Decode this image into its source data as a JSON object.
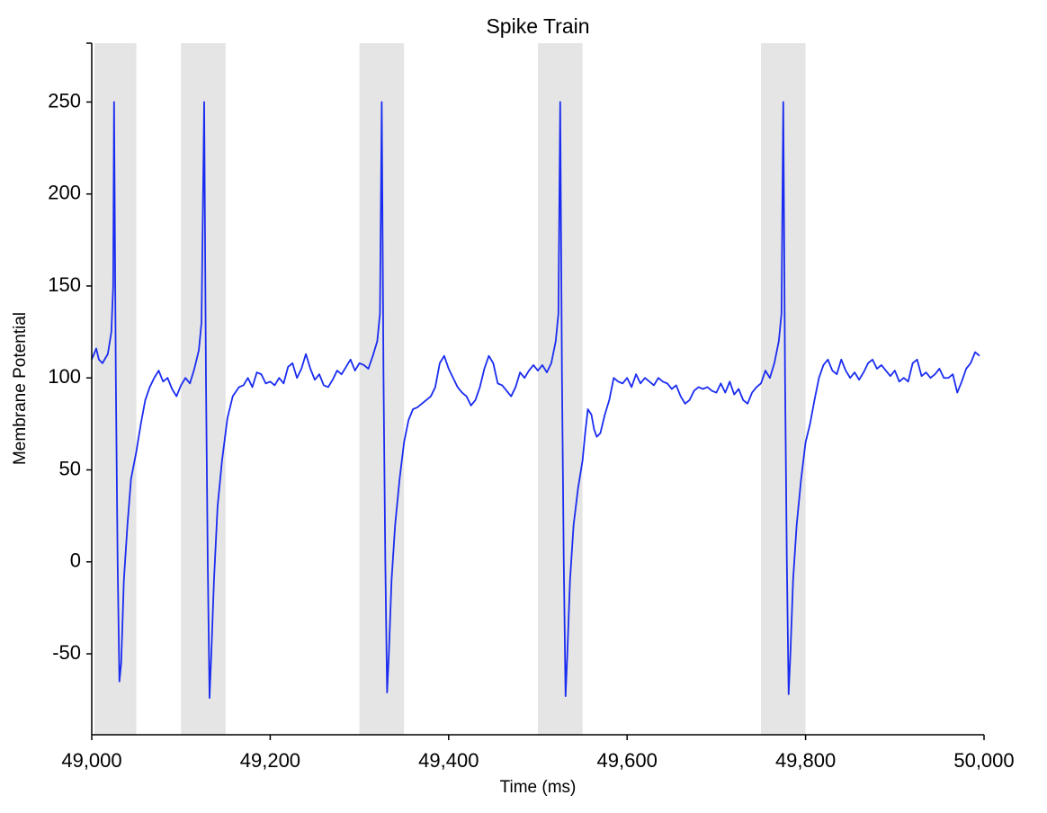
{
  "chart_data": {
    "type": "line",
    "title": "Spike Train",
    "xlabel": "Time (ms)",
    "ylabel": "Membrane Potential",
    "x": [
      49000,
      49005,
      49008,
      49012,
      49018,
      49022,
      49024,
      49025,
      49027,
      49029,
      49031,
      49033,
      49036,
      49040,
      49044,
      49050,
      49055,
      49060,
      49065,
      49070,
      49075,
      49080,
      49085,
      49090,
      49095,
      49100,
      49105,
      49110,
      49115,
      49120,
      49123,
      49126,
      49128,
      49130,
      49132,
      49134,
      49137,
      49141,
      49146,
      49152,
      49158,
      49165,
      49170,
      49175,
      49180,
      49185,
      49190,
      49195,
      49200,
      49205,
      49210,
      49215,
      49220,
      49225,
      49230,
      49235,
      49240,
      49245,
      49250,
      49255,
      49260,
      49265,
      49270,
      49275,
      49280,
      49285,
      49290,
      49295,
      49300,
      49305,
      49310,
      49315,
      49320,
      49323,
      49325,
      49327,
      49329,
      49331,
      49333,
      49336,
      49340,
      49345,
      49350,
      49355,
      49360,
      49365,
      49370,
      49375,
      49380,
      49385,
      49390,
      49395,
      49400,
      49405,
      49410,
      49415,
      49420,
      49425,
      49430,
      49435,
      49440,
      49445,
      49450,
      49455,
      49460,
      49465,
      49470,
      49475,
      49480,
      49485,
      49490,
      49495,
      49500,
      49505,
      49510,
      49515,
      49520,
      49523,
      49525,
      49527,
      49529,
      49531,
      49533,
      49536,
      49540,
      49545,
      49550,
      49553,
      49556,
      49560,
      49563,
      49566,
      49570,
      49575,
      49580,
      49585,
      49590,
      49595,
      49600,
      49605,
      49610,
      49615,
      49620,
      49625,
      49630,
      49635,
      49640,
      49645,
      49650,
      49655,
      49660,
      49665,
      49670,
      49675,
      49680,
      49685,
      49690,
      49695,
      49700,
      49705,
      49710,
      49715,
      49720,
      49725,
      49730,
      49735,
      49740,
      49745,
      49750,
      49755,
      49760,
      49765,
      49770,
      49773,
      49775,
      49777,
      49779,
      49781,
      49783,
      49786,
      49790,
      49795,
      49800,
      49805,
      49810,
      49815,
      49820,
      49825,
      49830,
      49835,
      49840,
      49845,
      49850,
      49855,
      49860,
      49865,
      49870,
      49875,
      49880,
      49885,
      49890,
      49895,
      49900,
      49905,
      49910,
      49915,
      49920,
      49925,
      49930,
      49935,
      49940,
      49945,
      49950,
      49955,
      49960,
      49965,
      49970,
      49975,
      49980,
      49985,
      49990,
      49995
    ],
    "values": [
      110,
      116,
      110,
      108,
      113,
      125,
      150,
      250,
      100,
      0,
      -65,
      -55,
      -10,
      20,
      45,
      60,
      75,
      88,
      95,
      100,
      104,
      98,
      100,
      94,
      90,
      96,
      100,
      97,
      105,
      115,
      130,
      250,
      100,
      0,
      -74,
      -50,
      -10,
      30,
      55,
      78,
      90,
      95,
      96,
      100,
      95,
      103,
      102,
      97,
      98,
      96,
      100,
      97,
      106,
      108,
      100,
      105,
      113,
      105,
      99,
      102,
      96,
      95,
      99,
      104,
      102,
      106,
      110,
      104,
      108,
      107,
      105,
      112,
      120,
      135,
      250,
      100,
      0,
      -71,
      -50,
      -10,
      20,
      45,
      65,
      77,
      83,
      84,
      86,
      88,
      90,
      95,
      108,
      112,
      105,
      100,
      95,
      92,
      90,
      85,
      88,
      95,
      105,
      112,
      108,
      97,
      96,
      93,
      90,
      95,
      103,
      100,
      104,
      107,
      104,
      107,
      103,
      108,
      120,
      135,
      250,
      100,
      0,
      -73,
      -50,
      -10,
      20,
      40,
      55,
      70,
      83,
      80,
      72,
      68,
      70,
      80,
      88,
      100,
      98,
      97,
      100,
      95,
      102,
      97,
      100,
      98,
      96,
      100,
      98,
      97,
      94,
      96,
      90,
      86,
      88,
      93,
      95,
      94,
      95,
      93,
      92,
      97,
      92,
      98,
      91,
      94,
      88,
      86,
      92,
      95,
      97,
      104,
      100,
      108,
      120,
      135,
      250,
      100,
      0,
      -72,
      -50,
      -10,
      20,
      45,
      65,
      75,
      88,
      100,
      107,
      110,
      104,
      102,
      110,
      104,
      100,
      103,
      99,
      103,
      108,
      110,
      105,
      107,
      104,
      101,
      104,
      98,
      100,
      98,
      108,
      110,
      101,
      103,
      100,
      102,
      105,
      100,
      100,
      102,
      92,
      98,
      105,
      108,
      114,
      112
    ],
    "color": "#1a2cf0",
    "shaded_regions": [
      [
        49003,
        49050
      ],
      [
        49100,
        49150
      ],
      [
        49300,
        49350
      ],
      [
        49500,
        49550
      ],
      [
        49750,
        49800
      ]
    ],
    "shade_color": "#e5e5e5",
    "xlim": [
      49000,
      50000
    ],
    "xticks": [
      {
        "value": 49000,
        "label": "49,000"
      },
      {
        "value": 49200,
        "label": "49,200"
      },
      {
        "value": 49400,
        "label": "49,400"
      },
      {
        "value": 49600,
        "label": "49,600"
      },
      {
        "value": 49800,
        "label": "49,800"
      },
      {
        "value": 50000,
        "label": "50,000"
      }
    ],
    "ylim": [
      -94,
      282
    ],
    "yticks": [
      -50,
      0,
      50,
      100,
      150,
      200,
      250
    ]
  }
}
